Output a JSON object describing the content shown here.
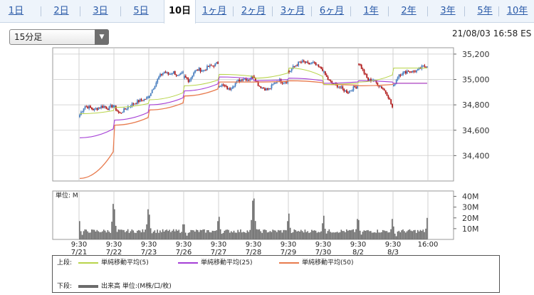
{
  "tabs": [
    {
      "label": "1日",
      "active": false
    },
    {
      "label": "2日",
      "active": false
    },
    {
      "label": "3日",
      "active": false
    },
    {
      "label": "5日",
      "active": false
    },
    {
      "label": "10日",
      "active": true
    },
    {
      "label": "1ヶ月",
      "active": false
    },
    {
      "label": "2ヶ月",
      "active": false
    },
    {
      "label": "3ヶ月",
      "active": false
    },
    {
      "label": "6ヶ月",
      "active": false
    },
    {
      "label": "1年",
      "active": false
    },
    {
      "label": "2年",
      "active": false
    },
    {
      "label": "3年",
      "active": false
    },
    {
      "label": "5年",
      "active": false
    },
    {
      "label": "10年",
      "active": false
    }
  ],
  "interval_select": {
    "value": "15分足"
  },
  "timestamp": "21/08/03 16:58 ES",
  "colors": {
    "candle_up": "#4a7fc0",
    "candle_down": "#b01818",
    "ma5": "#b8d44a",
    "ma25": "#a53fd6",
    "ma50": "#e87b4e",
    "volume": "#6b6b6b",
    "tab_link": "#2a5aa8"
  },
  "chart_data": [
    {
      "type": "candlestick",
      "ylim": [
        34200,
        35250
      ],
      "yticks": [
        "35,200",
        "35,000",
        "34,800",
        "34,600",
        "34,400"
      ],
      "ytick_values": [
        35200,
        35000,
        34800,
        34600,
        34400
      ],
      "days": [
        "7/21",
        "7/22",
        "7/23",
        "7/26",
        "7/27",
        "7/28",
        "7/29",
        "7/30",
        "8/2",
        "8/3"
      ],
      "session_open_label": "9:30",
      "session_close_label": "16:00",
      "price_path": [
        [
          34720,
          34790,
          34780,
          34760,
          34780,
          34790,
          34770,
          34800
        ],
        [
          34780,
          34730,
          34760,
          34790,
          34810,
          34830,
          34840,
          34860
        ],
        [
          34880,
          34950,
          35020,
          35060,
          35040,
          35060,
          35020,
          35050
        ],
        [
          35020,
          34990,
          35060,
          35080,
          35070,
          35100,
          35110,
          35130
        ],
        [
          34960,
          34950,
          34920,
          34960,
          34990,
          35010,
          35000,
          35020
        ],
        [
          35020,
          34950,
          34930,
          34920,
          34960,
          35000,
          34980,
          34990
        ],
        [
          35060,
          35100,
          35130,
          35140,
          35120,
          35130,
          35100,
          35080
        ],
        [
          35050,
          34990,
          34960,
          34950,
          34920,
          34900,
          34930,
          34950
        ],
        [
          35130,
          35060,
          34990,
          35000,
          34960,
          34930,
          34880,
          34780
        ],
        [
          34950,
          35040,
          35050,
          35070,
          35060,
          35070,
          35100,
          35110
        ]
      ],
      "ma5": [
        34730,
        34780,
        34840,
        34950,
        35040,
        35010,
        35090,
        34960,
        34980,
        35090
      ],
      "ma25": [
        34540,
        34680,
        34800,
        34910,
        35020,
        34990,
        35010,
        34970,
        34990,
        34970
      ],
      "ma50": [
        34220,
        34640,
        34760,
        34870,
        34980,
        34980,
        34990,
        34960,
        34950,
        34970
      ],
      "legend_label": "上段:",
      "series": [
        {
          "name": "単純移動平均(5)",
          "color_key": "ma5"
        },
        {
          "name": "単純移動平均(25)",
          "color_key": "ma25"
        },
        {
          "name": "単純移動平均(50)",
          "color_key": "ma50"
        }
      ]
    },
    {
      "type": "bar",
      "unit_label": "単位: M",
      "ylim": [
        0,
        45
      ],
      "yticks": [
        "40M",
        "30M",
        "20M",
        "10M"
      ],
      "ytick_values": [
        40,
        30,
        20,
        10
      ],
      "open_spike": [
        17,
        28,
        23,
        14,
        21,
        38,
        24,
        22,
        18,
        12
      ],
      "close_spike": [
        33,
        28,
        14,
        17,
        36,
        17,
        15,
        19,
        19,
        20
      ],
      "base_level": 6,
      "legend_label": "下段:",
      "series": [
        {
          "name": "出来高 単位:(M株/口/枚)",
          "color_key": "volume"
        }
      ]
    }
  ]
}
